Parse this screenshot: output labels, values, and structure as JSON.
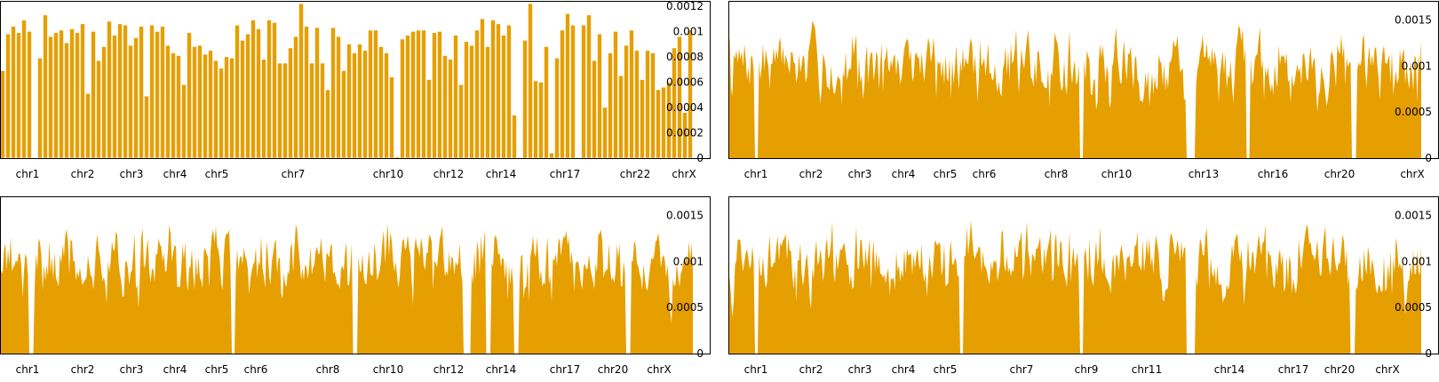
{
  "theme": {
    "fill_color": "#E69F00",
    "axis_color": "#000000",
    "background": "#ffffff"
  },
  "chart_data": [
    {
      "type": "bar",
      "panel": "top-left",
      "title": "",
      "xlabel": "",
      "ylabel": "",
      "ylim": [
        0,
        0.00122
      ],
      "y_axis_side": "right",
      "yticks": [
        0,
        0.0002,
        0.0004,
        0.0006,
        0.0008,
        0.001,
        0.0012
      ],
      "yticklabels": [
        "0",
        "0.0002",
        "0.0004",
        "0.0006",
        "0.0008",
        "0.001",
        "0.0012"
      ],
      "chromosome_labels": [
        {
          "label": "chr1",
          "x": 31
        },
        {
          "label": "chr2",
          "x": 93
        },
        {
          "label": "chr3",
          "x": 148
        },
        {
          "label": "chr4",
          "x": 197
        },
        {
          "label": "chr5",
          "x": 244
        },
        {
          "label": "chr7",
          "x": 330
        },
        {
          "label": "chr10",
          "x": 437
        },
        {
          "label": "chr12",
          "x": 505
        },
        {
          "label": "chr14",
          "x": 564
        },
        {
          "label": "chr17",
          "x": 636
        },
        {
          "label": "chr22",
          "x": 715
        },
        {
          "label": "chrX",
          "x": 770
        }
      ],
      "x_range": [
        0,
        780
      ],
      "bar_width": 5,
      "bars": [
        {
          "x": 3,
          "v": 0.00069
        },
        {
          "x": 9,
          "v": 0.00098
        },
        {
          "x": 15,
          "v": 0.00104
        },
        {
          "x": 21,
          "v": 0.00099
        },
        {
          "x": 27,
          "v": 0.00109
        },
        {
          "x": 33,
          "v": 0.001
        },
        {
          "x": 45,
          "v": 0.00079
        },
        {
          "x": 51,
          "v": 0.00113
        },
        {
          "x": 57,
          "v": 0.00096
        },
        {
          "x": 63,
          "v": 0.00099
        },
        {
          "x": 69,
          "v": 0.00101
        },
        {
          "x": 75,
          "v": 0.00091
        },
        {
          "x": 81,
          "v": 0.00102
        },
        {
          "x": 87,
          "v": 0.00099
        },
        {
          "x": 93,
          "v": 0.00106
        },
        {
          "x": 99,
          "v": 0.00051
        },
        {
          "x": 105,
          "v": 0.001
        },
        {
          "x": 111,
          "v": 0.00077
        },
        {
          "x": 117,
          "v": 0.00088
        },
        {
          "x": 123,
          "v": 0.00108
        },
        {
          "x": 129,
          "v": 0.00097
        },
        {
          "x": 135,
          "v": 0.00106
        },
        {
          "x": 141,
          "v": 0.00105
        },
        {
          "x": 147,
          "v": 0.00089
        },
        {
          "x": 153,
          "v": 0.00095
        },
        {
          "x": 159,
          "v": 0.00104
        },
        {
          "x": 165,
          "v": 0.00049
        },
        {
          "x": 171,
          "v": 0.00105
        },
        {
          "x": 177,
          "v": 0.001
        },
        {
          "x": 183,
          "v": 0.00104
        },
        {
          "x": 189,
          "v": 0.00089
        },
        {
          "x": 195,
          "v": 0.00083
        },
        {
          "x": 201,
          "v": 0.00081
        },
        {
          "x": 207,
          "v": 0.00058
        },
        {
          "x": 213,
          "v": 0.00099
        },
        {
          "x": 219,
          "v": 0.00088
        },
        {
          "x": 225,
          "v": 0.00089
        },
        {
          "x": 231,
          "v": 0.00082
        },
        {
          "x": 237,
          "v": 0.00085
        },
        {
          "x": 243,
          "v": 0.00077
        },
        {
          "x": 249,
          "v": 0.00071
        },
        {
          "x": 255,
          "v": 0.0008
        },
        {
          "x": 261,
          "v": 0.00079
        },
        {
          "x": 267,
          "v": 0.00105
        },
        {
          "x": 273,
          "v": 0.00093
        },
        {
          "x": 279,
          "v": 0.00098
        },
        {
          "x": 285,
          "v": 0.00109
        },
        {
          "x": 291,
          "v": 0.00102
        },
        {
          "x": 297,
          "v": 0.00078
        },
        {
          "x": 303,
          "v": 0.00109
        },
        {
          "x": 309,
          "v": 0.00107
        },
        {
          "x": 315,
          "v": 0.00075
        },
        {
          "x": 321,
          "v": 0.00075
        },
        {
          "x": 327,
          "v": 0.00087
        },
        {
          "x": 333,
          "v": 0.00096
        },
        {
          "x": 339,
          "v": 0.00122
        },
        {
          "x": 345,
          "v": 0.00104
        },
        {
          "x": 351,
          "v": 0.00075
        },
        {
          "x": 357,
          "v": 0.00103
        },
        {
          "x": 363,
          "v": 0.00075
        },
        {
          "x": 369,
          "v": 0.00054
        },
        {
          "x": 375,
          "v": 0.00103
        },
        {
          "x": 381,
          "v": 0.00096
        },
        {
          "x": 387,
          "v": 0.00069
        },
        {
          "x": 393,
          "v": 0.0009
        },
        {
          "x": 399,
          "v": 0.00083
        },
        {
          "x": 405,
          "v": 0.0009
        },
        {
          "x": 411,
          "v": 0.00085
        },
        {
          "x": 417,
          "v": 0.00101
        },
        {
          "x": 423,
          "v": 0.00101
        },
        {
          "x": 429,
          "v": 0.00088
        },
        {
          "x": 435,
          "v": 0.00083
        },
        {
          "x": 441,
          "v": 0.00064
        },
        {
          "x": 447,
          "v": 1e-05
        },
        {
          "x": 453,
          "v": 0.00094
        },
        {
          "x": 459,
          "v": 0.00097
        },
        {
          "x": 465,
          "v": 0.001
        },
        {
          "x": 471,
          "v": 0.00101
        },
        {
          "x": 477,
          "v": 0.00101
        },
        {
          "x": 483,
          "v": 0.00062
        },
        {
          "x": 489,
          "v": 0.00099
        },
        {
          "x": 495,
          "v": 0.001
        },
        {
          "x": 501,
          "v": 0.00081
        },
        {
          "x": 507,
          "v": 0.00078
        },
        {
          "x": 513,
          "v": 0.00097
        },
        {
          "x": 519,
          "v": 0.00058
        },
        {
          "x": 525,
          "v": 0.00092
        },
        {
          "x": 531,
          "v": 0.00089
        },
        {
          "x": 537,
          "v": 0.00101
        },
        {
          "x": 543,
          "v": 0.0011
        },
        {
          "x": 549,
          "v": 0.00088
        },
        {
          "x": 555,
          "v": 0.00109
        },
        {
          "x": 561,
          "v": 0.00106
        },
        {
          "x": 567,
          "v": 0.00097
        },
        {
          "x": 573,
          "v": 0.00105
        },
        {
          "x": 579,
          "v": 0.00034
        },
        {
          "x": 591,
          "v": 0.00093
        },
        {
          "x": 597,
          "v": 0.00122
        },
        {
          "x": 603,
          "v": 0.00061
        },
        {
          "x": 609,
          "v": 0.0006
        },
        {
          "x": 615,
          "v": 0.00088
        },
        {
          "x": 621,
          "v": 4e-05
        },
        {
          "x": 627,
          "v": 0.00079
        },
        {
          "x": 633,
          "v": 0.00101
        },
        {
          "x": 639,
          "v": 0.00114
        },
        {
          "x": 645,
          "v": 0.00105
        },
        {
          "x": 657,
          "v": 0.00105
        },
        {
          "x": 663,
          "v": 0.00113
        },
        {
          "x": 669,
          "v": 0.00077
        },
        {
          "x": 675,
          "v": 0.00098
        },
        {
          "x": 681,
          "v": 0.0004
        },
        {
          "x": 687,
          "v": 0.00083
        },
        {
          "x": 693,
          "v": 0.001
        },
        {
          "x": 699,
          "v": 0.00065
        },
        {
          "x": 705,
          "v": 0.00089
        },
        {
          "x": 711,
          "v": 0.00101
        },
        {
          "x": 717,
          "v": 0.00085
        },
        {
          "x": 723,
          "v": 0.00062
        },
        {
          "x": 729,
          "v": 0.00085
        },
        {
          "x": 735,
          "v": 0.00083
        },
        {
          "x": 741,
          "v": 0.00054
        },
        {
          "x": 747,
          "v": 0.00056
        },
        {
          "x": 753,
          "v": 0.0006
        },
        {
          "x": 759,
          "v": 0.00087
        },
        {
          "x": 765,
          "v": 0.00096
        },
        {
          "x": 771,
          "v": 0.00036
        },
        {
          "x": 777,
          "v": 0.00101
        }
      ]
    },
    {
      "type": "area",
      "panel": "top-right",
      "title": "",
      "xlabel": "",
      "ylabel": "",
      "ylim": [
        0,
        0.00168
      ],
      "y_axis_side": "right",
      "yticks": [
        0,
        0.0005,
        0.001,
        0.0015
      ],
      "yticklabels": [
        "0",
        "0.0005",
        "0.001",
        "0.0015"
      ],
      "chromosome_labels": [
        {
          "label": "chr1",
          "x": 31
        },
        {
          "label": "chr2",
          "x": 93
        },
        {
          "label": "chr3",
          "x": 148
        },
        {
          "label": "chr4",
          "x": 197
        },
        {
          "label": "chr5",
          "x": 244
        },
        {
          "label": "chr6",
          "x": 288
        },
        {
          "label": "chr8",
          "x": 369
        },
        {
          "label": "chr10",
          "x": 437
        },
        {
          "label": "chr13",
          "x": 535
        },
        {
          "label": "chr16",
          "x": 613
        },
        {
          "label": "chr20",
          "x": 688
        },
        {
          "label": "chrX",
          "x": 770
        }
      ],
      "x_range": [
        0,
        780
      ],
      "gaps": [
        [
          29,
          34
        ],
        [
          395,
          400
        ],
        [
          516,
          525
        ],
        [
          583,
          587
        ],
        [
          702,
          707
        ]
      ],
      "seed": 7
    },
    {
      "type": "area",
      "panel": "bottom-left",
      "title": "",
      "xlabel": "",
      "ylabel": "",
      "ylim": [
        0,
        0.00168
      ],
      "y_axis_side": "right",
      "yticks": [
        0,
        0.0005,
        0.001,
        0.0015
      ],
      "yticklabels": [
        "0",
        "0.0005",
        "0.001",
        "0.0015"
      ],
      "chromosome_labels": [
        {
          "label": "chr1",
          "x": 31
        },
        {
          "label": "chr2",
          "x": 93
        },
        {
          "label": "chr3",
          "x": 148
        },
        {
          "label": "chr4",
          "x": 197
        },
        {
          "label": "chr5",
          "x": 244
        },
        {
          "label": "chr6",
          "x": 288
        },
        {
          "label": "chr8",
          "x": 369
        },
        {
          "label": "chr10",
          "x": 437
        },
        {
          "label": "chr12",
          "x": 505
        },
        {
          "label": "chr14",
          "x": 564
        },
        {
          "label": "chr17",
          "x": 636
        },
        {
          "label": "chr20",
          "x": 690
        },
        {
          "label": "chrX",
          "x": 742
        }
      ],
      "x_range": [
        0,
        780
      ],
      "gaps": [
        [
          32,
          38
        ],
        [
          260,
          264
        ],
        [
          397,
          403
        ],
        [
          522,
          530
        ],
        [
          547,
          553
        ],
        [
          579,
          584
        ],
        [
          705,
          710
        ]
      ],
      "seed": 21
    },
    {
      "type": "area",
      "panel": "bottom-right",
      "title": "",
      "xlabel": "",
      "ylabel": "",
      "ylim": [
        0,
        0.00168
      ],
      "y_axis_side": "right",
      "yticks": [
        0,
        0.0005,
        0.001,
        0.0015
      ],
      "yticklabels": [
        "0",
        "0.0005",
        "0.001",
        "0.0015"
      ],
      "chromosome_labels": [
        {
          "label": "chr1",
          "x": 31
        },
        {
          "label": "chr2",
          "x": 93
        },
        {
          "label": "chr3",
          "x": 148
        },
        {
          "label": "chr4",
          "x": 197
        },
        {
          "label": "chr5",
          "x": 244
        },
        {
          "label": "chr7",
          "x": 330
        },
        {
          "label": "chr9",
          "x": 403
        },
        {
          "label": "chr11",
          "x": 471
        },
        {
          "label": "chr14",
          "x": 564
        },
        {
          "label": "chr17",
          "x": 636
        },
        {
          "label": "chr20",
          "x": 688
        },
        {
          "label": "chrX",
          "x": 742
        }
      ],
      "x_range": [
        0,
        780
      ],
      "gaps": [
        [
          29,
          34
        ],
        [
          260,
          264
        ],
        [
          395,
          400
        ],
        [
          516,
          525
        ],
        [
          700,
          706
        ]
      ],
      "seed": 43
    }
  ]
}
